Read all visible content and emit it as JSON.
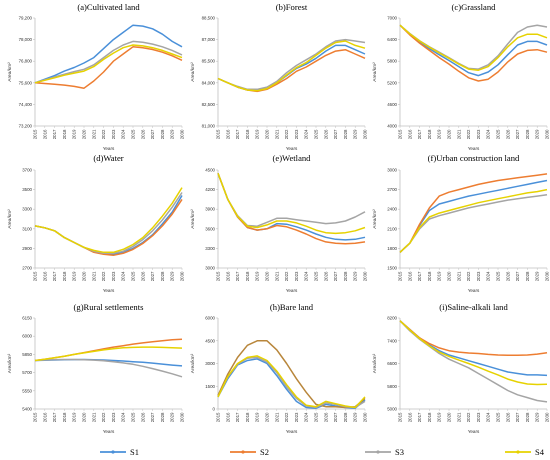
{
  "colors": {
    "S1": "#4a90d9",
    "S2": "#ed7d31",
    "S3": "#a5a5a5",
    "S4": "#e6d200",
    "bare_S2": "#b8863b",
    "axis": "#bfbfbf"
  },
  "legend": [
    "S1",
    "S2",
    "S3",
    "S4"
  ],
  "chart_data": [
    {
      "type": "line",
      "title": "(a)Cultivated land",
      "ylabel": "Area/km²",
      "xlabel": "Years",
      "ylim": [
        73200,
        79200
      ],
      "yticks": [
        "73,200",
        "74,400",
        "75,600",
        "76,800",
        "78,000",
        "79,200"
      ],
      "x": [
        2015,
        2016,
        2017,
        2018,
        2019,
        2020,
        2021,
        2022,
        2023,
        2024,
        2025,
        2026,
        2027,
        2028,
        2029,
        2030
      ],
      "series": [
        {
          "name": "S1",
          "values": [
            75600,
            75800,
            76000,
            76250,
            76450,
            76700,
            77000,
            77500,
            78000,
            78400,
            78800,
            78750,
            78600,
            78300,
            77900,
            77600
          ]
        },
        {
          "name": "S2",
          "values": [
            75600,
            75560,
            75520,
            75470,
            75400,
            75300,
            75700,
            76200,
            76800,
            77200,
            77600,
            77550,
            77450,
            77300,
            77100,
            76850
          ]
        },
        {
          "name": "S3",
          "values": [
            75600,
            75760,
            75920,
            76080,
            76220,
            76350,
            76600,
            77000,
            77400,
            77700,
            77900,
            77850,
            77750,
            77600,
            77400,
            77150
          ]
        },
        {
          "name": "S4",
          "values": [
            75600,
            75740,
            75880,
            76020,
            76140,
            76250,
            76500,
            76900,
            77250,
            77550,
            77700,
            77650,
            77550,
            77400,
            77200,
            77000
          ]
        }
      ]
    },
    {
      "type": "line",
      "title": "(b)Forest",
      "ylabel": "Area/km²",
      "xlabel": "Years",
      "ylim": [
        81000,
        88500
      ],
      "yticks": [
        "81,000",
        "82,500",
        "84,000",
        "85,500",
        "87,000",
        "88,500"
      ],
      "x": [
        2015,
        2016,
        2017,
        2018,
        2019,
        2020,
        2021,
        2022,
        2023,
        2024,
        2025,
        2026,
        2027,
        2028,
        2029,
        2030
      ],
      "series": [
        {
          "name": "S1",
          "values": [
            84300,
            84000,
            83700,
            83500,
            83500,
            83600,
            84000,
            84500,
            85000,
            85300,
            85700,
            86200,
            86600,
            86600,
            86300,
            86000
          ]
        },
        {
          "name": "S2",
          "values": [
            84300,
            84000,
            83700,
            83500,
            83400,
            83550,
            83900,
            84300,
            84800,
            85100,
            85500,
            85900,
            86200,
            86300,
            86000,
            85700
          ]
        },
        {
          "name": "S3",
          "values": [
            84300,
            84000,
            83750,
            83550,
            83550,
            83700,
            84100,
            84700,
            85200,
            85600,
            86000,
            86500,
            86900,
            87000,
            86900,
            86800
          ]
        },
        {
          "name": "S4",
          "values": [
            84300,
            84000,
            83700,
            83500,
            83450,
            83600,
            84000,
            84550,
            85050,
            85400,
            85900,
            86400,
            86800,
            86900,
            86600,
            86400
          ]
        }
      ]
    },
    {
      "type": "line",
      "title": "(c)Grassland",
      "ylabel": "Area/km²",
      "xlabel": "Years",
      "ylim": [
        4000,
        7000
      ],
      "yticks": [
        "4000",
        "4600",
        "5200",
        "5800",
        "6400",
        "7000"
      ],
      "x": [
        2015,
        2016,
        2017,
        2018,
        2019,
        2020,
        2021,
        2022,
        2023,
        2024,
        2025,
        2026,
        2027,
        2028,
        2029,
        2030
      ],
      "series": [
        {
          "name": "S1",
          "values": [
            6800,
            6550,
            6330,
            6150,
            5980,
            5820,
            5650,
            5480,
            5400,
            5500,
            5700,
            5980,
            6250,
            6350,
            6350,
            6250
          ]
        },
        {
          "name": "S2",
          "values": [
            6800,
            6530,
            6300,
            6100,
            5900,
            5720,
            5520,
            5340,
            5250,
            5300,
            5500,
            5780,
            6000,
            6100,
            6120,
            6050
          ]
        },
        {
          "name": "S3",
          "values": [
            6800,
            6570,
            6370,
            6200,
            6050,
            5900,
            5740,
            5600,
            5580,
            5700,
            5950,
            6280,
            6600,
            6750,
            6800,
            6750
          ]
        },
        {
          "name": "S4",
          "values": [
            6800,
            6560,
            6360,
            6190,
            6030,
            5880,
            5720,
            5580,
            5550,
            5650,
            5900,
            6200,
            6450,
            6550,
            6550,
            6450
          ]
        }
      ]
    },
    {
      "type": "line",
      "title": "(d)Water",
      "ylabel": "Area/km²",
      "xlabel": "Years",
      "ylim": [
        2700,
        3700
      ],
      "yticks": [
        "2700",
        "2900",
        "3100",
        "3300",
        "3500",
        "3700"
      ],
      "x": [
        2015,
        2016,
        2017,
        2018,
        2019,
        2020,
        2021,
        2022,
        2023,
        2024,
        2025,
        2026,
        2027,
        2028,
        2029,
        2030
      ],
      "series": [
        {
          "name": "S1",
          "values": [
            3130,
            3110,
            3080,
            3010,
            2960,
            2910,
            2870,
            2850,
            2840,
            2860,
            2900,
            2960,
            3040,
            3150,
            3270,
            3440
          ]
        },
        {
          "name": "S2",
          "values": [
            3130,
            3110,
            3080,
            3010,
            2960,
            2910,
            2860,
            2840,
            2830,
            2850,
            2890,
            2950,
            3030,
            3130,
            3250,
            3400
          ]
        },
        {
          "name": "S3",
          "values": [
            3130,
            3110,
            3080,
            3010,
            2960,
            2910,
            2870,
            2850,
            2850,
            2870,
            2920,
            2990,
            3080,
            3190,
            3320,
            3470
          ]
        },
        {
          "name": "S4",
          "values": [
            3130,
            3110,
            3080,
            3010,
            2960,
            2910,
            2880,
            2860,
            2860,
            2890,
            2940,
            3010,
            3110,
            3230,
            3360,
            3520
          ]
        }
      ]
    },
    {
      "type": "line",
      "title": "(e)Wetland",
      "ylabel": "Area/km²",
      "xlabel": "Years",
      "ylim": [
        3000,
        4500
      ],
      "yticks": [
        "3000",
        "3300",
        "3600",
        "3900",
        "4200",
        "4500"
      ],
      "x": [
        2015,
        2016,
        2017,
        2018,
        2019,
        2020,
        2021,
        2022,
        2023,
        2024,
        2025,
        2026,
        2027,
        2028,
        2029,
        2030
      ],
      "series": [
        {
          "name": "S1",
          "values": [
            4450,
            4050,
            3780,
            3620,
            3580,
            3600,
            3680,
            3670,
            3630,
            3580,
            3520,
            3470,
            3440,
            3430,
            3440,
            3470
          ]
        },
        {
          "name": "S2",
          "values": [
            4450,
            4050,
            3780,
            3620,
            3580,
            3600,
            3650,
            3630,
            3580,
            3520,
            3450,
            3400,
            3380,
            3370,
            3380,
            3400
          ]
        },
        {
          "name": "S3",
          "values": [
            4450,
            4050,
            3800,
            3650,
            3640,
            3700,
            3760,
            3760,
            3740,
            3720,
            3700,
            3680,
            3690,
            3720,
            3780,
            3860
          ]
        },
        {
          "name": "S4",
          "values": [
            4450,
            4050,
            3790,
            3640,
            3620,
            3660,
            3720,
            3720,
            3690,
            3640,
            3580,
            3540,
            3530,
            3540,
            3570,
            3620
          ]
        }
      ]
    },
    {
      "type": "line",
      "title": "(f)Urban construction land",
      "ylabel": "Area/km²",
      "xlabel": "Years",
      "ylim": [
        1500,
        3000
      ],
      "yticks": [
        "1500",
        "1800",
        "2100",
        "2400",
        "2700",
        "3000"
      ],
      "x": [
        2015,
        2016,
        2017,
        2018,
        2019,
        2020,
        2021,
        2022,
        2023,
        2024,
        2025,
        2026,
        2027,
        2028,
        2029,
        2030
      ],
      "series": [
        {
          "name": "S1",
          "values": [
            1740,
            1880,
            2150,
            2380,
            2480,
            2520,
            2560,
            2600,
            2630,
            2660,
            2690,
            2720,
            2750,
            2780,
            2810,
            2840
          ]
        },
        {
          "name": "S2",
          "values": [
            1740,
            1880,
            2170,
            2420,
            2600,
            2660,
            2700,
            2740,
            2780,
            2810,
            2840,
            2860,
            2880,
            2900,
            2920,
            2940
          ]
        },
        {
          "name": "S3",
          "values": [
            1740,
            1880,
            2100,
            2250,
            2300,
            2340,
            2380,
            2420,
            2450,
            2480,
            2510,
            2540,
            2560,
            2580,
            2600,
            2620
          ]
        },
        {
          "name": "S4",
          "values": [
            1740,
            1880,
            2120,
            2280,
            2340,
            2380,
            2420,
            2460,
            2500,
            2530,
            2560,
            2590,
            2620,
            2650,
            2670,
            2700
          ]
        }
      ]
    },
    {
      "type": "line",
      "title": "(g)Rural settlements",
      "ylabel": "Area/km²",
      "xlabel": "Years",
      "ylim": [
        5400,
        6150
      ],
      "yticks": [
        "5400",
        "5550",
        "5700",
        "5850",
        "6000",
        "6150"
      ],
      "x": [
        2015,
        2016,
        2017,
        2018,
        2019,
        2020,
        2021,
        2022,
        2023,
        2024,
        2025,
        2026,
        2027,
        2028,
        2029,
        2030
      ],
      "series": [
        {
          "name": "S1",
          "values": [
            5800,
            5802,
            5804,
            5806,
            5807,
            5808,
            5806,
            5804,
            5800,
            5796,
            5790,
            5785,
            5778,
            5770,
            5762,
            5755
          ]
        },
        {
          "name": "S2",
          "values": [
            5800,
            5810,
            5822,
            5835,
            5850,
            5865,
            5880,
            5895,
            5910,
            5922,
            5935,
            5945,
            5955,
            5963,
            5970,
            5975
          ]
        },
        {
          "name": "S3",
          "values": [
            5800,
            5804,
            5807,
            5808,
            5808,
            5806,
            5803,
            5798,
            5790,
            5780,
            5768,
            5752,
            5733,
            5712,
            5690,
            5665
          ]
        },
        {
          "name": "S4",
          "values": [
            5800,
            5810,
            5822,
            5835,
            5850,
            5862,
            5875,
            5887,
            5897,
            5904,
            5908,
            5910,
            5910,
            5908,
            5905,
            5902
          ]
        }
      ]
    },
    {
      "type": "line",
      "title": "(h)Bare land",
      "ylabel": "Area/km²",
      "xlabel": "Years",
      "ylim": [
        0,
        6000
      ],
      "yticks": [
        "0",
        "1500",
        "3000",
        "4500",
        "6000"
      ],
      "x": [
        2015,
        2016,
        2017,
        2018,
        2019,
        2020,
        2021,
        2022,
        2023,
        2024,
        2025,
        2026,
        2027,
        2028,
        2029,
        2030
      ],
      "series": [
        {
          "name": "S1",
          "values": [
            800,
            2000,
            2900,
            3200,
            3300,
            3000,
            2200,
            1300,
            500,
            100,
            50,
            300,
            200,
            100,
            50,
            600
          ]
        },
        {
          "name": "S2",
          "values": [
            900,
            2300,
            3400,
            4200,
            4500,
            4500,
            3900,
            3000,
            2000,
            1100,
            300,
            150,
            150,
            100,
            150,
            700
          ]
        },
        {
          "name": "S3",
          "values": [
            800,
            2100,
            2950,
            3350,
            3400,
            3100,
            2400,
            1450,
            700,
            200,
            100,
            400,
            300,
            150,
            100,
            500
          ]
        },
        {
          "name": "S4",
          "values": [
            800,
            2150,
            3000,
            3400,
            3500,
            3200,
            2500,
            1600,
            800,
            250,
            150,
            500,
            350,
            200,
            100,
            800
          ]
        }
      ]
    },
    {
      "type": "line",
      "title": "(i)Saline-alkali land",
      "ylabel": "Area/km²",
      "xlabel": "Years",
      "ylim": [
        5000,
        8200
      ],
      "yticks": [
        "5000",
        "5800",
        "6600",
        "7400",
        "8200"
      ],
      "x": [
        2015,
        2016,
        2017,
        2018,
        2019,
        2020,
        2021,
        2022,
        2023,
        2024,
        2025,
        2026,
        2027,
        2028,
        2029,
        2030
      ],
      "series": [
        {
          "name": "S1",
          "values": [
            8100,
            7800,
            7500,
            7250,
            7050,
            6900,
            6800,
            6700,
            6600,
            6500,
            6400,
            6300,
            6250,
            6200,
            6200,
            6180
          ]
        },
        {
          "name": "S2",
          "values": [
            8100,
            7800,
            7500,
            7300,
            7150,
            7050,
            7000,
            6970,
            6950,
            6920,
            6900,
            6890,
            6890,
            6900,
            6930,
            6980
          ]
        },
        {
          "name": "S3",
          "values": [
            8100,
            7750,
            7450,
            7200,
            6950,
            6750,
            6600,
            6450,
            6250,
            6050,
            5850,
            5650,
            5500,
            5400,
            5300,
            5250
          ]
        },
        {
          "name": "S4",
          "values": [
            8100,
            7780,
            7480,
            7220,
            7000,
            6850,
            6720,
            6600,
            6470,
            6330,
            6200,
            6050,
            5950,
            5880,
            5860,
            5870
          ]
        }
      ]
    }
  ]
}
